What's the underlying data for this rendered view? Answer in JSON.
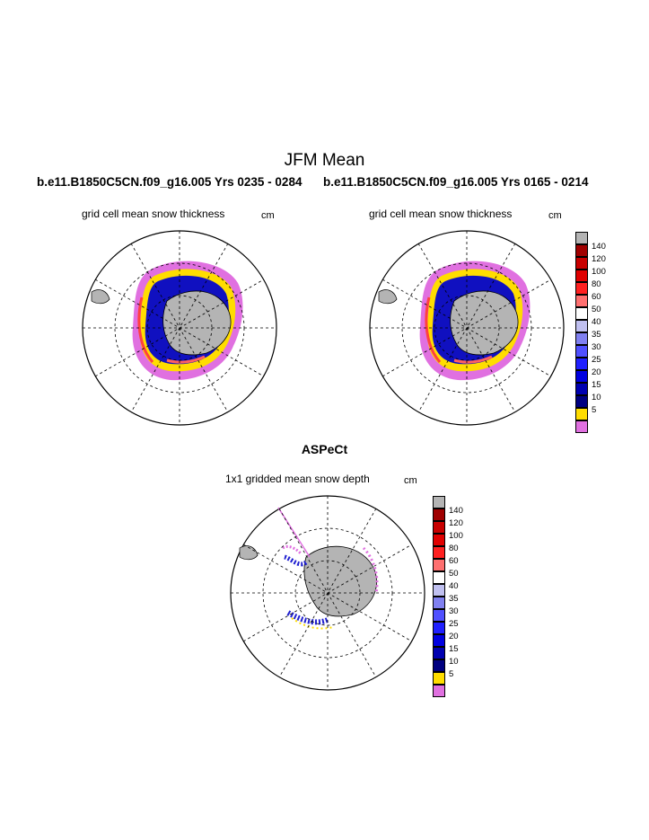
{
  "main_title": "JFM Mean",
  "run_left": "b.e11.B1850C5CN.f09_g16.005  Yrs 0235 - 0284",
  "run_right": "b.e11.B1850C5CN.f09_g16.005  Yrs 0165 - 0214",
  "panel_left": {
    "subtitle": "grid cell mean snow thickness",
    "unit": "cm"
  },
  "panel_right": {
    "subtitle": "grid cell mean snow thickness",
    "unit": "cm"
  },
  "obs_title": "ASPeCt",
  "panel_bottom": {
    "subtitle": "1x1 gridded mean snow depth",
    "unit": "cm"
  },
  "colorbar": {
    "levels": [
      "140",
      "120",
      "100",
      "80",
      "60",
      "50",
      "40",
      "35",
      "30",
      "25",
      "20",
      "15",
      "10",
      "5"
    ],
    "colors": [
      "#b4b4b4",
      "#a00000",
      "#c80000",
      "#e00000",
      "#ff2020",
      "#ff7070",
      "#ffffff",
      "#c0c0f0",
      "#8080f0",
      "#5050ff",
      "#2020ff",
      "#0000e0",
      "#0000b0",
      "#000080",
      "#ffdd00",
      "#e070e0"
    ]
  },
  "map_colors": {
    "land": "#b4b4b4",
    "ocean": "#ffffff"
  }
}
